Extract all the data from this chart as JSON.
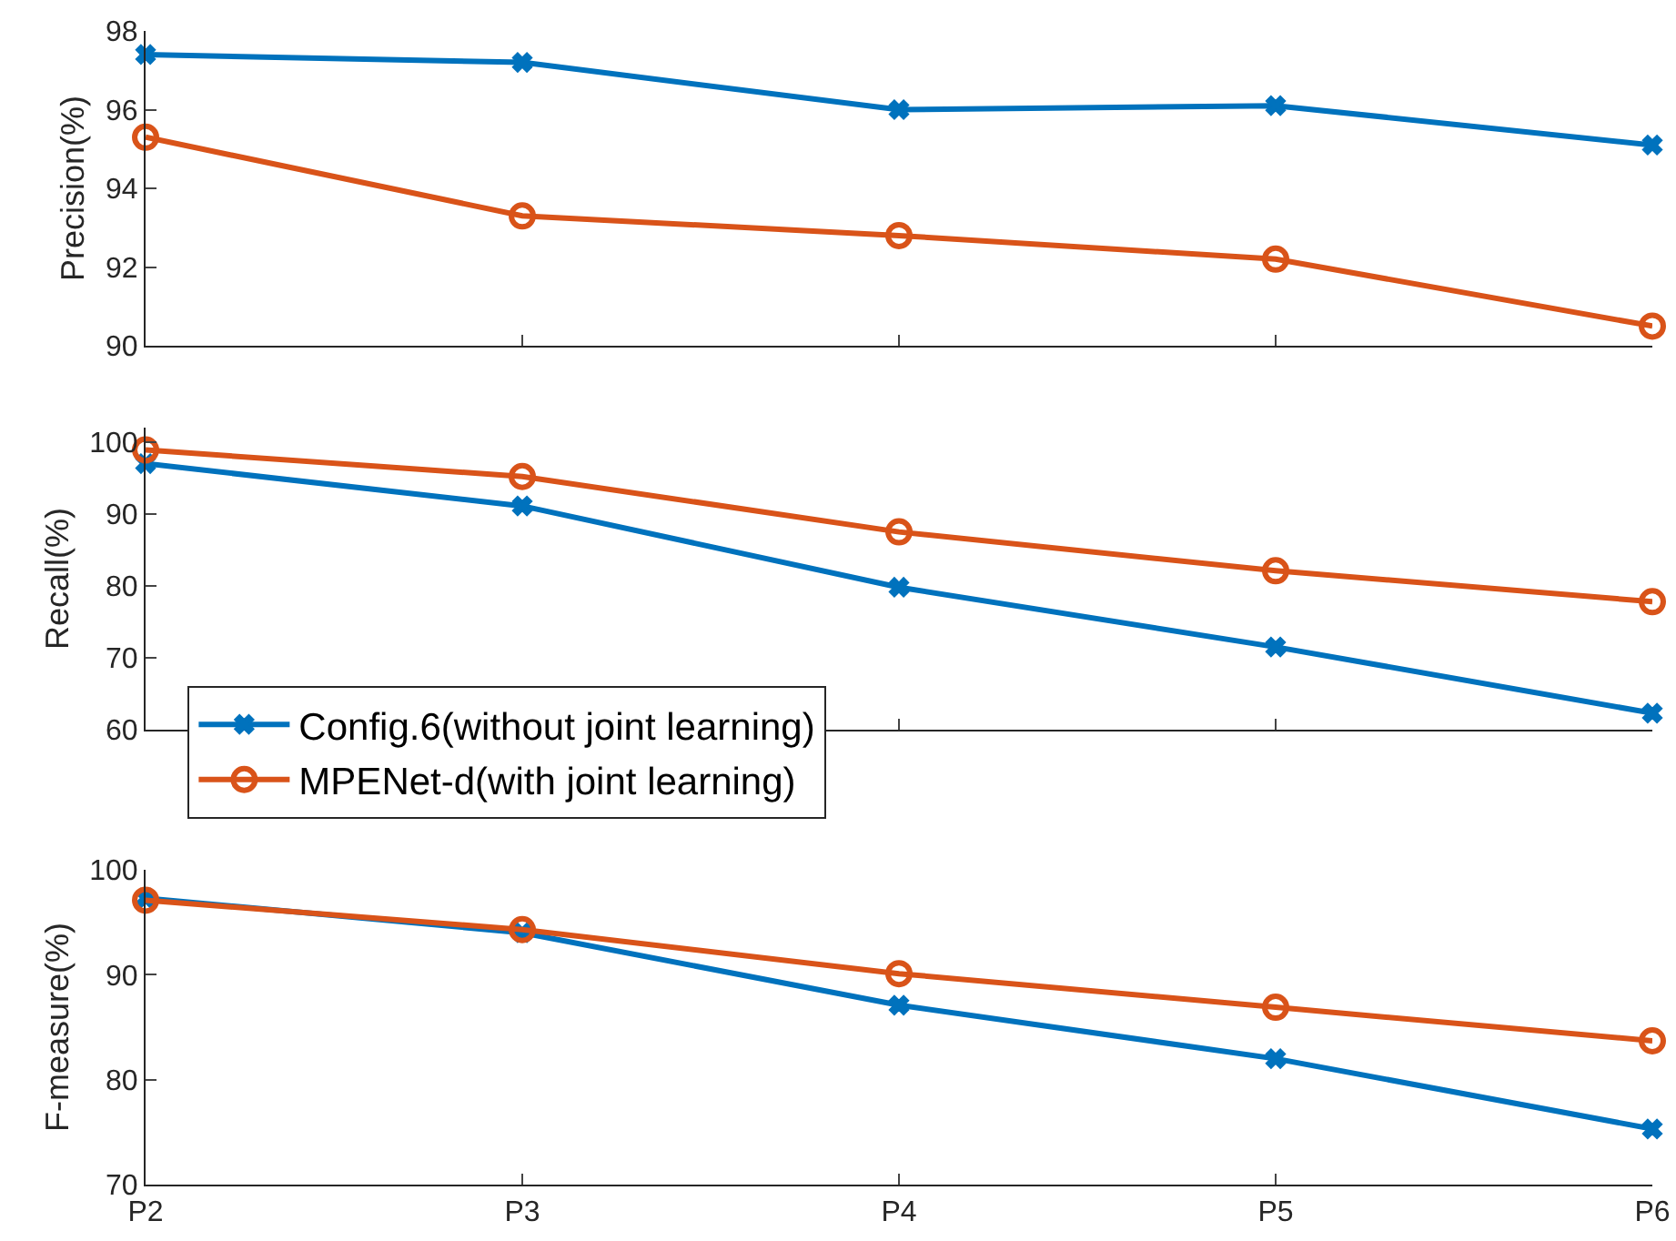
{
  "chart_data": [
    {
      "type": "line",
      "ylabel": "Precision(%)",
      "categories": [
        null,
        null,
        null,
        null,
        null
      ],
      "ylim": [
        90,
        98
      ],
      "yticks": [
        90,
        92,
        94,
        96,
        98
      ],
      "tick_labels": "y",
      "grid": false,
      "legend": false,
      "series": [
        {
          "color": "#0072bd",
          "marker": "cross",
          "values": [
            97.4,
            97.2,
            96.0,
            96.1,
            95.1
          ]
        },
        {
          "color": "#d95319",
          "marker": "circle",
          "values": [
            95.3,
            93.3,
            92.8,
            92.2,
            90.5
          ]
        }
      ]
    },
    {
      "type": "line",
      "ylabel": "Recall(%)",
      "categories": [
        null,
        null,
        null,
        null,
        null
      ],
      "ylim": [
        60,
        102
      ],
      "yticks": [
        60,
        70,
        80,
        90,
        100
      ],
      "tick_labels": "y",
      "grid": false,
      "legend": "bottom left",
      "series": [
        {
          "name": "Config.6(without joint learning)",
          "color": "#0072bd",
          "marker": "cross",
          "values": [
            97.0,
            91.1,
            79.8,
            71.5,
            62.3
          ]
        },
        {
          "name": "MPENet-d(with joint learning)",
          "color": "#d95319",
          "marker": "circle",
          "values": [
            98.9,
            95.2,
            87.5,
            82.1,
            77.8
          ]
        }
      ]
    },
    {
      "type": "line",
      "ylabel": "F-measure(%)",
      "categories": [
        "P2",
        "P3",
        "P4",
        "P5",
        "P6"
      ],
      "ylim": [
        70,
        100
      ],
      "yticks": [
        70,
        80,
        90,
        100
      ],
      "grid": false,
      "legend": false,
      "series": [
        {
          "color": "#0072bd",
          "marker": "cross",
          "values": [
            97.3,
            94.0,
            87.1,
            82.0,
            75.3
          ]
        },
        {
          "color": "#d95319",
          "marker": "circle",
          "values": [
            97.1,
            94.3,
            90.1,
            86.9,
            83.7
          ]
        }
      ]
    }
  ]
}
